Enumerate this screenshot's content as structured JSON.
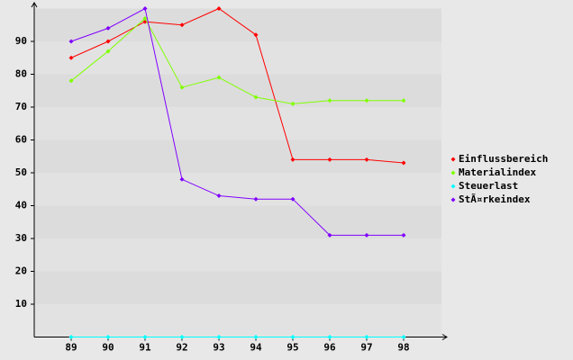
{
  "chart_data": {
    "type": "line",
    "categories": [
      "89",
      "90",
      "91",
      "92",
      "93",
      "94",
      "95",
      "96",
      "97",
      "98"
    ],
    "series": [
      {
        "name": "Einflussbereich",
        "color": "#ff0000",
        "values": [
          85,
          90,
          96,
          95,
          100,
          92,
          54,
          54,
          54,
          53
        ]
      },
      {
        "name": "Materialindex",
        "color": "#80ff00",
        "values": [
          78,
          87,
          97,
          76,
          79,
          73,
          71,
          72,
          72,
          72
        ]
      },
      {
        "name": "Steuerlast",
        "color": "#00ffff",
        "values": [
          0,
          0,
          0,
          0,
          0,
          0,
          0,
          0,
          0,
          0
        ]
      },
      {
        "name": "StÃ¤rkeindex",
        "color": "#8000ff",
        "values": [
          90,
          94,
          100,
          48,
          43,
          42,
          42,
          31,
          31,
          31
        ]
      }
    ],
    "ylim": [
      0,
      100
    ],
    "yticks": [
      10,
      20,
      30,
      40,
      50,
      60,
      70,
      80,
      90
    ],
    "grid": true,
    "legend": "right"
  }
}
